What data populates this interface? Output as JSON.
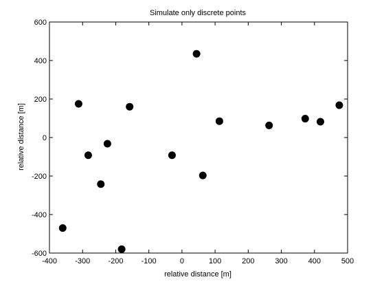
{
  "chart_data": {
    "type": "scatter",
    "title": "Simulate only discrete points",
    "xlabel": "relative distance [m]",
    "ylabel": "relative distance [m]",
    "xlim": [
      -400,
      500
    ],
    "ylim": [
      -600,
      600
    ],
    "xticks": [
      -400,
      -300,
      -200,
      -100,
      0,
      100,
      200,
      300,
      400,
      500
    ],
    "yticks": [
      -600,
      -400,
      -200,
      0,
      200,
      400,
      600
    ],
    "grid": false,
    "legend": "none",
    "marker_color": "#000000",
    "axis_color": "#000000",
    "background_color": "#ffffff",
    "points": [
      {
        "x": -360,
        "y": -470
      },
      {
        "x": -312,
        "y": 175
      },
      {
        "x": -283,
        "y": -92
      },
      {
        "x": -245,
        "y": -242
      },
      {
        "x": -225,
        "y": -32
      },
      {
        "x": -182,
        "y": -580
      },
      {
        "x": -158,
        "y": 160
      },
      {
        "x": -30,
        "y": -92
      },
      {
        "x": 44,
        "y": 435
      },
      {
        "x": 63,
        "y": -197
      },
      {
        "x": 113,
        "y": 85
      },
      {
        "x": 263,
        "y": 63
      },
      {
        "x": 372,
        "y": 98
      },
      {
        "x": 418,
        "y": 82
      },
      {
        "x": 475,
        "y": 168
      }
    ]
  }
}
